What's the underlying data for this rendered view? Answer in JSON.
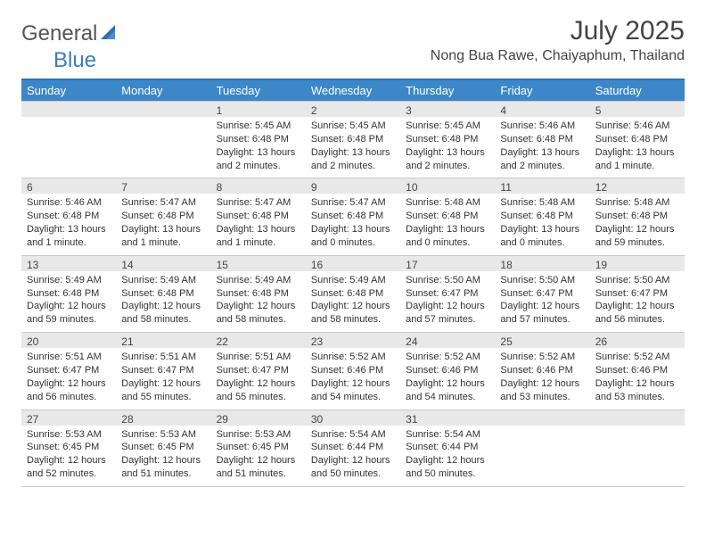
{
  "logo": {
    "text1": "General",
    "text2": "Blue"
  },
  "title": "July 2025",
  "location": "Nong Bua Rawe, Chaiyaphum, Thailand",
  "colors": {
    "header_bg": "#3d87c9",
    "header_border": "#2b74b8",
    "daynum_bg": "#e8e8e8",
    "text": "#333333",
    "logo_gray": "#555555",
    "logo_blue": "#3b7bbf"
  },
  "dayNames": [
    "Sunday",
    "Monday",
    "Tuesday",
    "Wednesday",
    "Thursday",
    "Friday",
    "Saturday"
  ],
  "layout": {
    "columns": 7,
    "rows": 5
  },
  "weeks": [
    [
      {
        "day": "",
        "sunrise": "",
        "sunset": "",
        "daylight": ""
      },
      {
        "day": "",
        "sunrise": "",
        "sunset": "",
        "daylight": ""
      },
      {
        "day": "1",
        "sunrise": "Sunrise: 5:45 AM",
        "sunset": "Sunset: 6:48 PM",
        "daylight": "Daylight: 13 hours and 2 minutes."
      },
      {
        "day": "2",
        "sunrise": "Sunrise: 5:45 AM",
        "sunset": "Sunset: 6:48 PM",
        "daylight": "Daylight: 13 hours and 2 minutes."
      },
      {
        "day": "3",
        "sunrise": "Sunrise: 5:45 AM",
        "sunset": "Sunset: 6:48 PM",
        "daylight": "Daylight: 13 hours and 2 minutes."
      },
      {
        "day": "4",
        "sunrise": "Sunrise: 5:46 AM",
        "sunset": "Sunset: 6:48 PM",
        "daylight": "Daylight: 13 hours and 2 minutes."
      },
      {
        "day": "5",
        "sunrise": "Sunrise: 5:46 AM",
        "sunset": "Sunset: 6:48 PM",
        "daylight": "Daylight: 13 hours and 1 minute."
      }
    ],
    [
      {
        "day": "6",
        "sunrise": "Sunrise: 5:46 AM",
        "sunset": "Sunset: 6:48 PM",
        "daylight": "Daylight: 13 hours and 1 minute."
      },
      {
        "day": "7",
        "sunrise": "Sunrise: 5:47 AM",
        "sunset": "Sunset: 6:48 PM",
        "daylight": "Daylight: 13 hours and 1 minute."
      },
      {
        "day": "8",
        "sunrise": "Sunrise: 5:47 AM",
        "sunset": "Sunset: 6:48 PM",
        "daylight": "Daylight: 13 hours and 1 minute."
      },
      {
        "day": "9",
        "sunrise": "Sunrise: 5:47 AM",
        "sunset": "Sunset: 6:48 PM",
        "daylight": "Daylight: 13 hours and 0 minutes."
      },
      {
        "day": "10",
        "sunrise": "Sunrise: 5:48 AM",
        "sunset": "Sunset: 6:48 PM",
        "daylight": "Daylight: 13 hours and 0 minutes."
      },
      {
        "day": "11",
        "sunrise": "Sunrise: 5:48 AM",
        "sunset": "Sunset: 6:48 PM",
        "daylight": "Daylight: 13 hours and 0 minutes."
      },
      {
        "day": "12",
        "sunrise": "Sunrise: 5:48 AM",
        "sunset": "Sunset: 6:48 PM",
        "daylight": "Daylight: 12 hours and 59 minutes."
      }
    ],
    [
      {
        "day": "13",
        "sunrise": "Sunrise: 5:49 AM",
        "sunset": "Sunset: 6:48 PM",
        "daylight": "Daylight: 12 hours and 59 minutes."
      },
      {
        "day": "14",
        "sunrise": "Sunrise: 5:49 AM",
        "sunset": "Sunset: 6:48 PM",
        "daylight": "Daylight: 12 hours and 58 minutes."
      },
      {
        "day": "15",
        "sunrise": "Sunrise: 5:49 AM",
        "sunset": "Sunset: 6:48 PM",
        "daylight": "Daylight: 12 hours and 58 minutes."
      },
      {
        "day": "16",
        "sunrise": "Sunrise: 5:49 AM",
        "sunset": "Sunset: 6:48 PM",
        "daylight": "Daylight: 12 hours and 58 minutes."
      },
      {
        "day": "17",
        "sunrise": "Sunrise: 5:50 AM",
        "sunset": "Sunset: 6:47 PM",
        "daylight": "Daylight: 12 hours and 57 minutes."
      },
      {
        "day": "18",
        "sunrise": "Sunrise: 5:50 AM",
        "sunset": "Sunset: 6:47 PM",
        "daylight": "Daylight: 12 hours and 57 minutes."
      },
      {
        "day": "19",
        "sunrise": "Sunrise: 5:50 AM",
        "sunset": "Sunset: 6:47 PM",
        "daylight": "Daylight: 12 hours and 56 minutes."
      }
    ],
    [
      {
        "day": "20",
        "sunrise": "Sunrise: 5:51 AM",
        "sunset": "Sunset: 6:47 PM",
        "daylight": "Daylight: 12 hours and 56 minutes."
      },
      {
        "day": "21",
        "sunrise": "Sunrise: 5:51 AM",
        "sunset": "Sunset: 6:47 PM",
        "daylight": "Daylight: 12 hours and 55 minutes."
      },
      {
        "day": "22",
        "sunrise": "Sunrise: 5:51 AM",
        "sunset": "Sunset: 6:47 PM",
        "daylight": "Daylight: 12 hours and 55 minutes."
      },
      {
        "day": "23",
        "sunrise": "Sunrise: 5:52 AM",
        "sunset": "Sunset: 6:46 PM",
        "daylight": "Daylight: 12 hours and 54 minutes."
      },
      {
        "day": "24",
        "sunrise": "Sunrise: 5:52 AM",
        "sunset": "Sunset: 6:46 PM",
        "daylight": "Daylight: 12 hours and 54 minutes."
      },
      {
        "day": "25",
        "sunrise": "Sunrise: 5:52 AM",
        "sunset": "Sunset: 6:46 PM",
        "daylight": "Daylight: 12 hours and 53 minutes."
      },
      {
        "day": "26",
        "sunrise": "Sunrise: 5:52 AM",
        "sunset": "Sunset: 6:46 PM",
        "daylight": "Daylight: 12 hours and 53 minutes."
      }
    ],
    [
      {
        "day": "27",
        "sunrise": "Sunrise: 5:53 AM",
        "sunset": "Sunset: 6:45 PM",
        "daylight": "Daylight: 12 hours and 52 minutes."
      },
      {
        "day": "28",
        "sunrise": "Sunrise: 5:53 AM",
        "sunset": "Sunset: 6:45 PM",
        "daylight": "Daylight: 12 hours and 51 minutes."
      },
      {
        "day": "29",
        "sunrise": "Sunrise: 5:53 AM",
        "sunset": "Sunset: 6:45 PM",
        "daylight": "Daylight: 12 hours and 51 minutes."
      },
      {
        "day": "30",
        "sunrise": "Sunrise: 5:54 AM",
        "sunset": "Sunset: 6:44 PM",
        "daylight": "Daylight: 12 hours and 50 minutes."
      },
      {
        "day": "31",
        "sunrise": "Sunrise: 5:54 AM",
        "sunset": "Sunset: 6:44 PM",
        "daylight": "Daylight: 12 hours and 50 minutes."
      },
      {
        "day": "",
        "sunrise": "",
        "sunset": "",
        "daylight": ""
      },
      {
        "day": "",
        "sunrise": "",
        "sunset": "",
        "daylight": ""
      }
    ]
  ]
}
